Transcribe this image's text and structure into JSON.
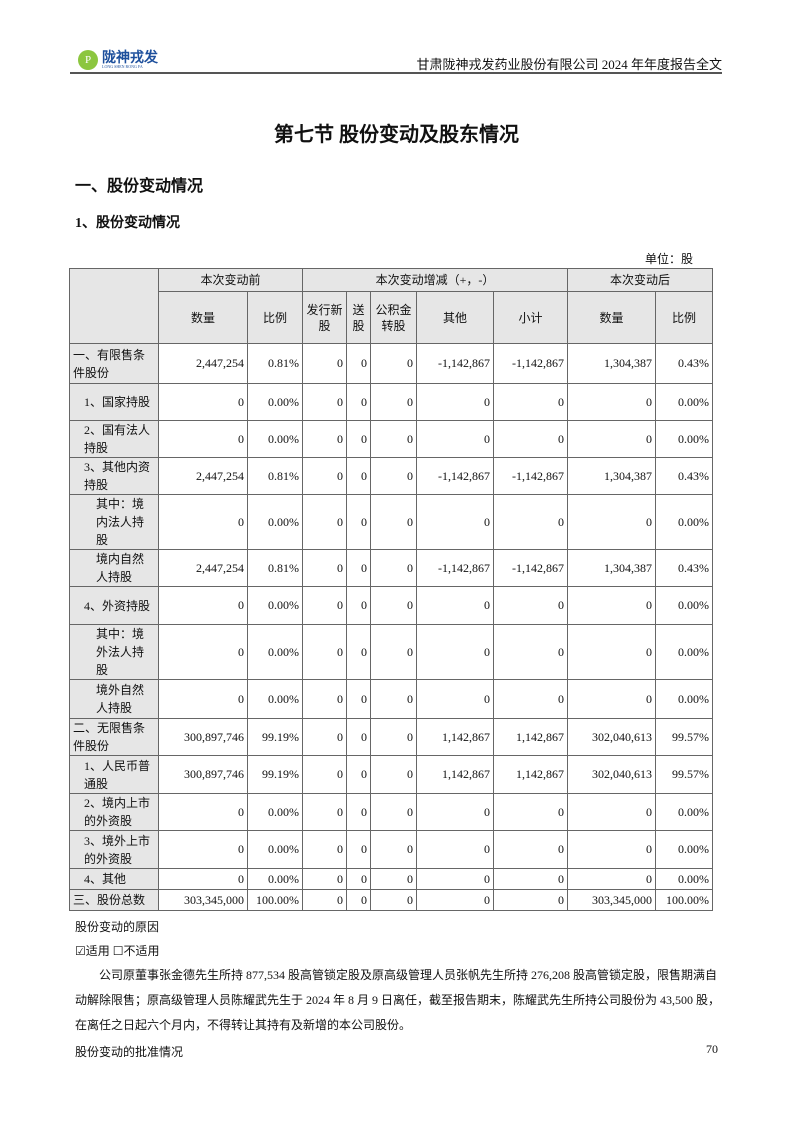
{
  "header": {
    "logo_text": "陇神戎发",
    "logo_sub": "LONG SHEN RONG FA",
    "title": "甘肃陇神戎发药业股份有限公司 2024 年年度报告全文"
  },
  "section_title": "第七节 股份变动及股东情况",
  "h2": "一、股份变动情况",
  "h3": "1、股份变动情况",
  "unit": "单位：股",
  "table": {
    "group_headers": [
      "本次变动前",
      "本次变动增减（+，-）",
      "本次变动后"
    ],
    "sub_headers": [
      "数量",
      "比例",
      "发行新股",
      "送股",
      "公积金转股",
      "其他",
      "小计",
      "数量",
      "比例"
    ],
    "rows": [
      {
        "label": "一、有限售条件股份",
        "indent": 0,
        "values": [
          "2,447,254",
          "0.81%",
          "0",
          "0",
          "0",
          "-1,142,867",
          "-1,142,867",
          "1,304,387",
          "0.43%"
        ]
      },
      {
        "label": "1、国家持股",
        "indent": 1,
        "values": [
          "0",
          "0.00%",
          "0",
          "0",
          "0",
          "0",
          "0",
          "0",
          "0.00%"
        ]
      },
      {
        "label": "2、国有法人持股",
        "indent": 1,
        "values": [
          "0",
          "0.00%",
          "0",
          "0",
          "0",
          "0",
          "0",
          "0",
          "0.00%"
        ]
      },
      {
        "label": "3、其他内资持股",
        "indent": 1,
        "values": [
          "2,447,254",
          "0.81%",
          "0",
          "0",
          "0",
          "-1,142,867",
          "-1,142,867",
          "1,304,387",
          "0.43%"
        ]
      },
      {
        "label": "其中：境内法人持股",
        "indent": 2,
        "values": [
          "0",
          "0.00%",
          "0",
          "0",
          "0",
          "0",
          "0",
          "0",
          "0.00%"
        ]
      },
      {
        "label": "境内自然人持股",
        "indent": 2,
        "values": [
          "2,447,254",
          "0.81%",
          "0",
          "0",
          "0",
          "-1,142,867",
          "-1,142,867",
          "1,304,387",
          "0.43%"
        ]
      },
      {
        "label": "4、外资持股",
        "indent": 1,
        "values": [
          "0",
          "0.00%",
          "0",
          "0",
          "0",
          "0",
          "0",
          "0",
          "0.00%"
        ]
      },
      {
        "label": "其中：境外法人持股",
        "indent": 2,
        "values": [
          "0",
          "0.00%",
          "0",
          "0",
          "0",
          "0",
          "0",
          "0",
          "0.00%"
        ]
      },
      {
        "label": "境外自然人持股",
        "indent": 2,
        "values": [
          "0",
          "0.00%",
          "0",
          "0",
          "0",
          "0",
          "0",
          "0",
          "0.00%"
        ]
      },
      {
        "label": "二、无限售条件股份",
        "indent": 0,
        "values": [
          "300,897,746",
          "99.19%",
          "0",
          "0",
          "0",
          "1,142,867",
          "1,142,867",
          "302,040,613",
          "99.57%"
        ]
      },
      {
        "label": "1、人民币普通股",
        "indent": 1,
        "values": [
          "300,897,746",
          "99.19%",
          "0",
          "0",
          "0",
          "1,142,867",
          "1,142,867",
          "302,040,613",
          "99.57%"
        ]
      },
      {
        "label": "2、境内上市的外资股",
        "indent": 1,
        "values": [
          "0",
          "0.00%",
          "0",
          "0",
          "0",
          "0",
          "0",
          "0",
          "0.00%"
        ]
      },
      {
        "label": "3、境外上市的外资股",
        "indent": 1,
        "values": [
          "0",
          "0.00%",
          "0",
          "0",
          "0",
          "0",
          "0",
          "0",
          "0.00%"
        ]
      },
      {
        "label": "4、其他",
        "indent": 1,
        "values": [
          "0",
          "0.00%",
          "0",
          "0",
          "0",
          "0",
          "0",
          "0",
          "0.00%"
        ]
      },
      {
        "label": "三、股份总数",
        "indent": 0,
        "values": [
          "303,345,000",
          "100.00%",
          "0",
          "0",
          "0",
          "0",
          "0",
          "303,345,000",
          "100.00%"
        ]
      }
    ]
  },
  "reason_label": "股份变动的原因",
  "applicable": "☑适用 ☐不适用",
  "reason_text": "公司原董事张金德先生所持 877,534 股高管锁定股及原高级管理人员张帆先生所持 276,208 股高管锁定股，限售期满自动解除限售；原高级管理人员陈耀武先生于 2024 年 8 月 9 日离任，截至报告期末，陈耀武先生所持公司股份为 43,500 股，在离任之日起六个月内，不得转让其持有及新增的本公司股份。",
  "approval_label": "股份变动的批准情况",
  "page_number": "70"
}
